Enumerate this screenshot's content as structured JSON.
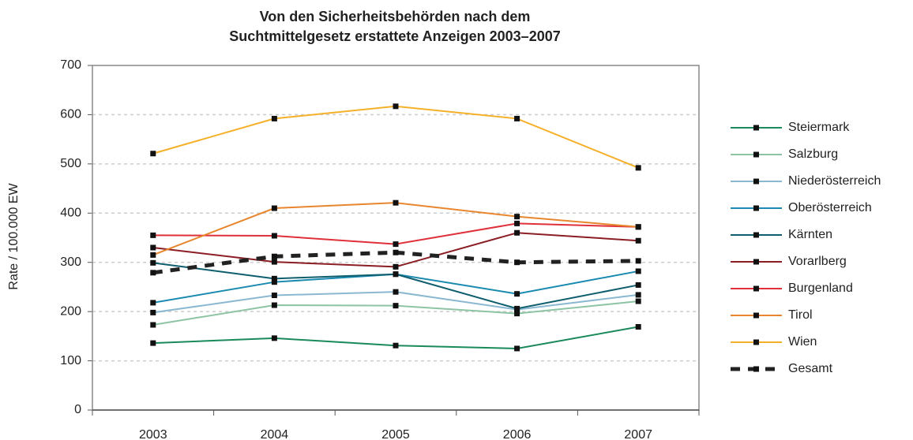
{
  "chart_data": {
    "type": "line",
    "title": [
      "Von den Sicherheitsbehörden nach dem",
      "Suchtmittelgesetz erstattete Anzeigen 2003–2007"
    ],
    "y_label": "Rate / 100.000 EW",
    "categories": [
      "2003",
      "2004",
      "2005",
      "2006",
      "2007"
    ],
    "ylim": [
      0,
      700
    ],
    "yticks": [
      0,
      100,
      200,
      300,
      400,
      500,
      600,
      700
    ],
    "grid": true,
    "legend": "right",
    "series": [
      {
        "name": "Steiermark",
        "color": "#1a8a5a",
        "values": [
          136,
          146,
          131,
          125,
          169
        ]
      },
      {
        "name": "Salzburg",
        "color": "#8cc4a4",
        "values": [
          173,
          213,
          212,
          196,
          221
        ]
      },
      {
        "name": "Niederösterreich",
        "color": "#8ab8d0",
        "values": [
          198,
          233,
          240,
          204,
          234
        ]
      },
      {
        "name": "Oberösterreich",
        "color": "#1a8ab0",
        "values": [
          218,
          260,
          276,
          236,
          282
        ]
      },
      {
        "name": "Kärnten",
        "color": "#0f5e6e",
        "values": [
          299,
          267,
          276,
          206,
          254
        ]
      },
      {
        "name": "Vorarlberg",
        "color": "#8b1e24",
        "values": [
          330,
          301,
          291,
          360,
          344
        ]
      },
      {
        "name": "Burgenland",
        "color": "#e0303a",
        "values": [
          355,
          354,
          337,
          379,
          372
        ]
      },
      {
        "name": "Tirol",
        "color": "#e8862e",
        "values": [
          315,
          410,
          421,
          393,
          372
        ]
      },
      {
        "name": "Wien",
        "color": "#f5b02a",
        "values": [
          521,
          592,
          617,
          592,
          492
        ]
      },
      {
        "name": "Gesamt",
        "color": "#222222",
        "dashed": true,
        "values": [
          279,
          312,
          320,
          300,
          303
        ]
      }
    ]
  }
}
